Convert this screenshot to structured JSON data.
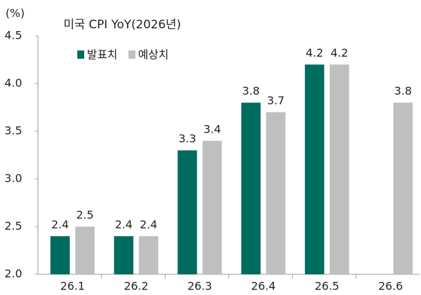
{
  "chart_data": {
    "type": "bar",
    "title": "미국 CPI YoY(2026년)",
    "y_label": "(%)",
    "categories": [
      "26.1",
      "26.2",
      "26.3",
      "26.4",
      "26.5",
      "26.6"
    ],
    "series": [
      {
        "name": "발표치",
        "color": "#006b5f",
        "values": [
          2.4,
          2.4,
          3.3,
          3.8,
          4.2,
          null
        ]
      },
      {
        "name": "예상치",
        "color": "#bfbfbf",
        "values": [
          2.5,
          2.4,
          3.4,
          3.7,
          4.2,
          3.8
        ]
      }
    ],
    "ylim": [
      2.0,
      4.5
    ],
    "yticks": [
      {
        "value": 2,
        "label": "2.0"
      },
      2.5,
      {
        "value": 3,
        "label": "3.0"
      },
      3.5,
      {
        "value": 4,
        "label": "4.0"
      },
      4.5
    ],
    "grid": false,
    "legend": "top-left"
  }
}
